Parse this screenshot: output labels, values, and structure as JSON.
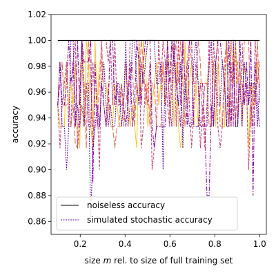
{
  "chart_data": {
    "type": "line",
    "xlabel_prefix": "size ",
    "xlabel_var": "m",
    "xlabel_suffix": " rel. to size of full training set",
    "ylabel": "accuracy",
    "xlim": [
      0.07,
      1.03
    ],
    "ylim": [
      0.85,
      1.02
    ],
    "xticks": [
      0.2,
      0.4,
      0.6,
      0.8,
      1.0
    ],
    "xtick_labels": [
      "0.2",
      "0.4",
      "0.6",
      "0.8",
      "1.0"
    ],
    "yticks": [
      0.86,
      0.88,
      0.9,
      0.92,
      0.94,
      0.96,
      0.98,
      1.0,
      1.02
    ],
    "ytick_labels": [
      "0.86",
      "0.88",
      "0.90",
      "0.92",
      "0.94",
      "0.96",
      "0.98",
      "1.00",
      "1.02"
    ],
    "legend_position": "lower-left",
    "legend": [
      {
        "label": "noiseless accuracy",
        "color": "#000000",
        "style": "solid"
      },
      {
        "label": "simulated stochastic accuracy",
        "color": "#5c01a6",
        "style": "dotted"
      }
    ],
    "noiseless": {
      "x": [
        0.1,
        1.0
      ],
      "y": [
        1.0,
        1.0
      ],
      "color": "#000000"
    },
    "stochastic_series": [
      {
        "color": "#fdc328",
        "dash": "none",
        "width": 1.0,
        "amp": 0.033,
        "seed": 11,
        "spikes": [
          [
            0.21,
            1.0
          ],
          [
            0.46,
            1.0
          ],
          [
            0.87,
            1.0
          ],
          [
            0.93,
            0.98
          ]
        ]
      },
      {
        "color": "#e97257",
        "dash": "8 3",
        "width": 1.1,
        "amp": 0.035,
        "seed": 23,
        "spikes": [
          [
            0.18,
            0.92
          ],
          [
            0.49,
            0.95
          ],
          [
            0.59,
            1.0
          ],
          [
            0.63,
            1.0
          ],
          [
            0.99,
            1.0
          ]
        ]
      },
      {
        "color": "#cc4778",
        "dash": "4 2",
        "width": 1.1,
        "amp": 0.038,
        "seed": 37,
        "spikes": [
          [
            0.29,
            0.9
          ],
          [
            0.52,
            0.9
          ],
          [
            0.95,
            0.9
          ],
          [
            0.3,
            1.0
          ]
        ]
      },
      {
        "color": "#8b0aa5",
        "dash": "6 2 1.5 2",
        "width": 1.1,
        "amp": 0.042,
        "seed": 51,
        "spikes": [
          [
            0.26,
            0.89
          ],
          [
            0.77,
            0.88
          ],
          [
            0.97,
            0.88
          ],
          [
            0.34,
            1.0
          ],
          [
            0.82,
            1.0
          ]
        ]
      },
      {
        "color": "#5c01a6",
        "dash": "2 1.5",
        "width": 1.0,
        "amp": 0.04,
        "seed": 67,
        "spikes": [
          [
            0.14,
            0.9
          ],
          [
            0.25,
            0.86
          ],
          [
            0.53,
            1.0
          ],
          [
            0.57,
            0.9
          ],
          [
            0.16,
            1.0
          ]
        ]
      }
    ]
  }
}
